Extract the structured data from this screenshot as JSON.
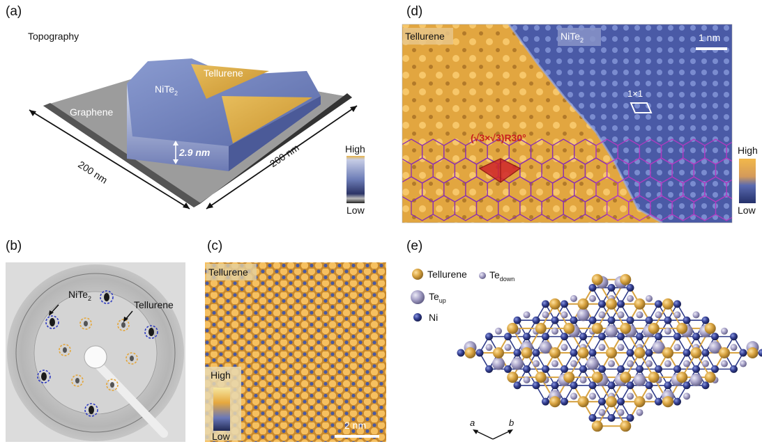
{
  "panels": {
    "a": {
      "label": "(a)",
      "title": "Topography",
      "labels": {
        "nite2": "NiTe",
        "nite2_sub": "2",
        "tellurene": "Tellurene",
        "graphene": "Graphene",
        "height": "2.9 nm",
        "left_dim": "200 nm",
        "right_dim": "200 nm"
      },
      "colorbar": {
        "high": "High",
        "low": "Low"
      }
    },
    "b": {
      "label": "(b)",
      "labels": {
        "nite2": "NiTe",
        "nite2_sub": "2",
        "tellurene": "Tellurene"
      }
    },
    "c": {
      "label": "(c)",
      "labels": {
        "tellurene": "Tellurene",
        "scale": "2 nm"
      },
      "colorbar": {
        "high": "High",
        "low": "Low"
      }
    },
    "d": {
      "label": "(d)",
      "labels": {
        "tellurene": "Tellurene",
        "nite2": "NiTe",
        "nite2_sub": "2",
        "scale": "1 nm",
        "cell": "1×1",
        "recon": "(√3×√3)R30°"
      },
      "colorbar": {
        "high": "High",
        "low": "Low"
      }
    },
    "e": {
      "label": "(e)",
      "legend": {
        "tellurene": "Tellurene",
        "te_down": "Te",
        "te_down_sub": "down",
        "te_up": "Te",
        "te_up_sub": "up",
        "ni": "Ni"
      },
      "axes": {
        "a": "a",
        "b": "b"
      }
    }
  },
  "colors": {
    "gold": "#d9a441",
    "blue": "#3a4a8e",
    "purple": "#9a8fc0",
    "red": "#d0262b",
    "magenta": "#b03ac0"
  }
}
